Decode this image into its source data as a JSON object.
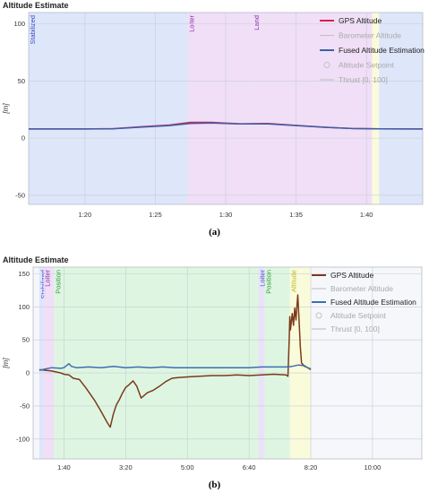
{
  "captions": [
    "(a)",
    "(b)"
  ],
  "chart_data": [
    {
      "type": "line",
      "title": "Altitude Estimate",
      "ylabel": "[m]",
      "xlim": [
        76,
        104
      ],
      "ylim": [
        -58,
        110
      ],
      "yticks": [
        -50,
        0,
        50,
        100
      ],
      "xticks": [
        {
          "v": 80,
          "label": "1:20"
        },
        {
          "v": 85,
          "label": "1:25"
        },
        {
          "v": 90,
          "label": "1:30"
        },
        {
          "v": 95,
          "label": "1:35"
        },
        {
          "v": 100,
          "label": "1:40"
        }
      ],
      "grid": true,
      "legend": "top-right",
      "legend_entries": [
        {
          "label": "GPS Altitude",
          "color": "#d6204f",
          "kind": "line",
          "active": true
        },
        {
          "label": "Barometer Altitude",
          "color": "#9a9a9a",
          "kind": "line",
          "active": false
        },
        {
          "label": "Fused Altitude Estimation",
          "color": "#3d5fa8",
          "kind": "line",
          "active": true
        },
        {
          "label": "Altitude Setpoint",
          "color": "#c9a0a0",
          "kind": "circle",
          "active": false
        },
        {
          "label": "Thrust [0, 100]",
          "color": "#b0b0b0",
          "kind": "line",
          "active": false
        }
      ],
      "modes": [
        {
          "label": "Stabilized",
          "start": 76,
          "end": 87.3,
          "color": "#dbe3f9",
          "text_color": "#3a48c8"
        },
        {
          "label": "Loiter",
          "start": 87.3,
          "end": 91.9,
          "color": "#efdcf6",
          "text_color": "#8a2aa8"
        },
        {
          "label": "Land",
          "start": 91.9,
          "end": 100.4,
          "color": "#efdcf6",
          "text_color": "#8a2aa8"
        },
        {
          "label": "",
          "start": 100.4,
          "end": 100.9,
          "color": "#fbfbd6",
          "text_color": "#999933"
        },
        {
          "label": "",
          "start": 100.9,
          "end": 104,
          "color": "#dbe3f9",
          "text_color": "#3a48c8"
        }
      ],
      "series": [
        {
          "name": "GPS Altitude",
          "color": "#d6204f",
          "x": [
            76,
            80,
            82,
            84,
            86,
            87.5,
            89,
            91,
            93,
            95,
            97,
            99,
            101,
            103,
            104
          ],
          "y": [
            8,
            8,
            8.3,
            10,
            11.5,
            13.8,
            13.8,
            12.6,
            12.8,
            11.2,
            9.6,
            8.4,
            8.1,
            8.0,
            8.0
          ]
        },
        {
          "name": "Fused Altitude Estimation",
          "color": "#3d5fa8",
          "x": [
            76,
            80,
            82,
            84,
            86,
            87.5,
            89,
            91,
            93,
            95,
            97,
            99,
            101,
            103,
            104
          ],
          "y": [
            8,
            8,
            8.2,
            9.6,
            11,
            12.8,
            13.3,
            12.4,
            12.5,
            11.0,
            9.5,
            8.4,
            8.1,
            8.0,
            8.0
          ]
        }
      ]
    },
    {
      "type": "line",
      "title": "Altitude Estimate",
      "ylabel": "[m]",
      "xlim": [
        50,
        680
      ],
      "ylim": [
        -130,
        160
      ],
      "yticks": [
        -100,
        -50,
        0,
        50,
        100,
        150
      ],
      "xticks": [
        {
          "v": 100,
          "label": "1:40"
        },
        {
          "v": 200,
          "label": "3:20"
        },
        {
          "v": 300,
          "label": "5:00"
        },
        {
          "v": 400,
          "label": "6:40"
        },
        {
          "v": 500,
          "label": "8:20"
        },
        {
          "v": 600,
          "label": "10:00"
        }
      ],
      "grid": true,
      "legend": "top-right",
      "legend_entries": [
        {
          "label": "GPS Altitude",
          "color": "#7a3b1a",
          "kind": "line",
          "active": true
        },
        {
          "label": "Barometer Altitude",
          "color": "#9a9a9a",
          "kind": "line",
          "active": false
        },
        {
          "label": "Fused Altitude Estimation",
          "color": "#3d6fb0",
          "kind": "line",
          "active": true
        },
        {
          "label": "Altitude Setpoint",
          "color": "#c9a0a0",
          "kind": "circle",
          "active": false
        },
        {
          "label": "Thrust [0, 100]",
          "color": "#b0b0b0",
          "kind": "line",
          "active": false
        }
      ],
      "modes": [
        {
          "label": "Stabilized",
          "start": 60,
          "end": 67,
          "color": "#dbe3f9",
          "text_color": "#3a48c8"
        },
        {
          "label": "Loiter",
          "start": 67,
          "end": 84,
          "color": "#efdcf6",
          "text_color": "#8a2aa8"
        },
        {
          "label": "Position",
          "start": 84,
          "end": 415,
          "color": "#dcf5de",
          "text_color": "#2c9a3c"
        },
        {
          "label": "Loiter",
          "start": 415,
          "end": 425,
          "color": "#e8e0f7",
          "text_color": "#3a48c8"
        },
        {
          "label": "Position",
          "start": 425,
          "end": 466,
          "color": "#dcf5de",
          "text_color": "#2c9a3c"
        },
        {
          "label": "Altitude",
          "start": 466,
          "end": 490,
          "color": "#fbfbd6",
          "text_color": "#b8b820"
        },
        {
          "label": "",
          "start": 490,
          "end": 500,
          "color": "#fbfbd6",
          "text_color": "#b8b820"
        }
      ],
      "series": [
        {
          "name": "GPS Altitude",
          "color": "#7a3b1a",
          "x": [
            60,
            70,
            80,
            95,
            100,
            108,
            115,
            125,
            135,
            150,
            160,
            170,
            175,
            180,
            185,
            190,
            195,
            200,
            205,
            212,
            218,
            225,
            235,
            245,
            255,
            265,
            275,
            285,
            300,
            320,
            340,
            360,
            380,
            400,
            420,
            440,
            460,
            463,
            465,
            466,
            467,
            470,
            472,
            474,
            476,
            477,
            479,
            481,
            483,
            485,
            490,
            495,
            500
          ],
          "y": [
            5,
            4,
            3,
            0,
            -2,
            -3,
            -8,
            -10,
            -22,
            -42,
            -58,
            -75,
            -82,
            -62,
            -48,
            -40,
            -30,
            -22,
            -18,
            -12,
            -20,
            -38,
            -30,
            -26,
            -20,
            -13,
            -8,
            -7,
            -6,
            -5,
            -4,
            -4,
            -3,
            -4,
            -3,
            -2,
            -3,
            -5,
            50,
            85,
            65,
            90,
            72,
            98,
            80,
            95,
            118,
            80,
            40,
            15,
            10,
            8,
            5
          ]
        },
        {
          "name": "Fused Altitude Estimation",
          "color": "#3d6fb0",
          "x": [
            60,
            70,
            80,
            95,
            100,
            108,
            112,
            120,
            140,
            160,
            180,
            200,
            220,
            240,
            260,
            280,
            300,
            320,
            340,
            360,
            380,
            400,
            420,
            440,
            460,
            470,
            480,
            490,
            495,
            500
          ],
          "y": [
            4,
            6,
            8,
            7,
            8,
            14,
            10,
            8,
            9,
            8,
            10,
            8,
            9,
            8,
            9,
            8,
            8,
            8,
            8,
            8,
            8,
            8,
            9,
            9,
            9,
            10,
            12,
            11,
            8,
            6
          ]
        }
      ]
    }
  ]
}
